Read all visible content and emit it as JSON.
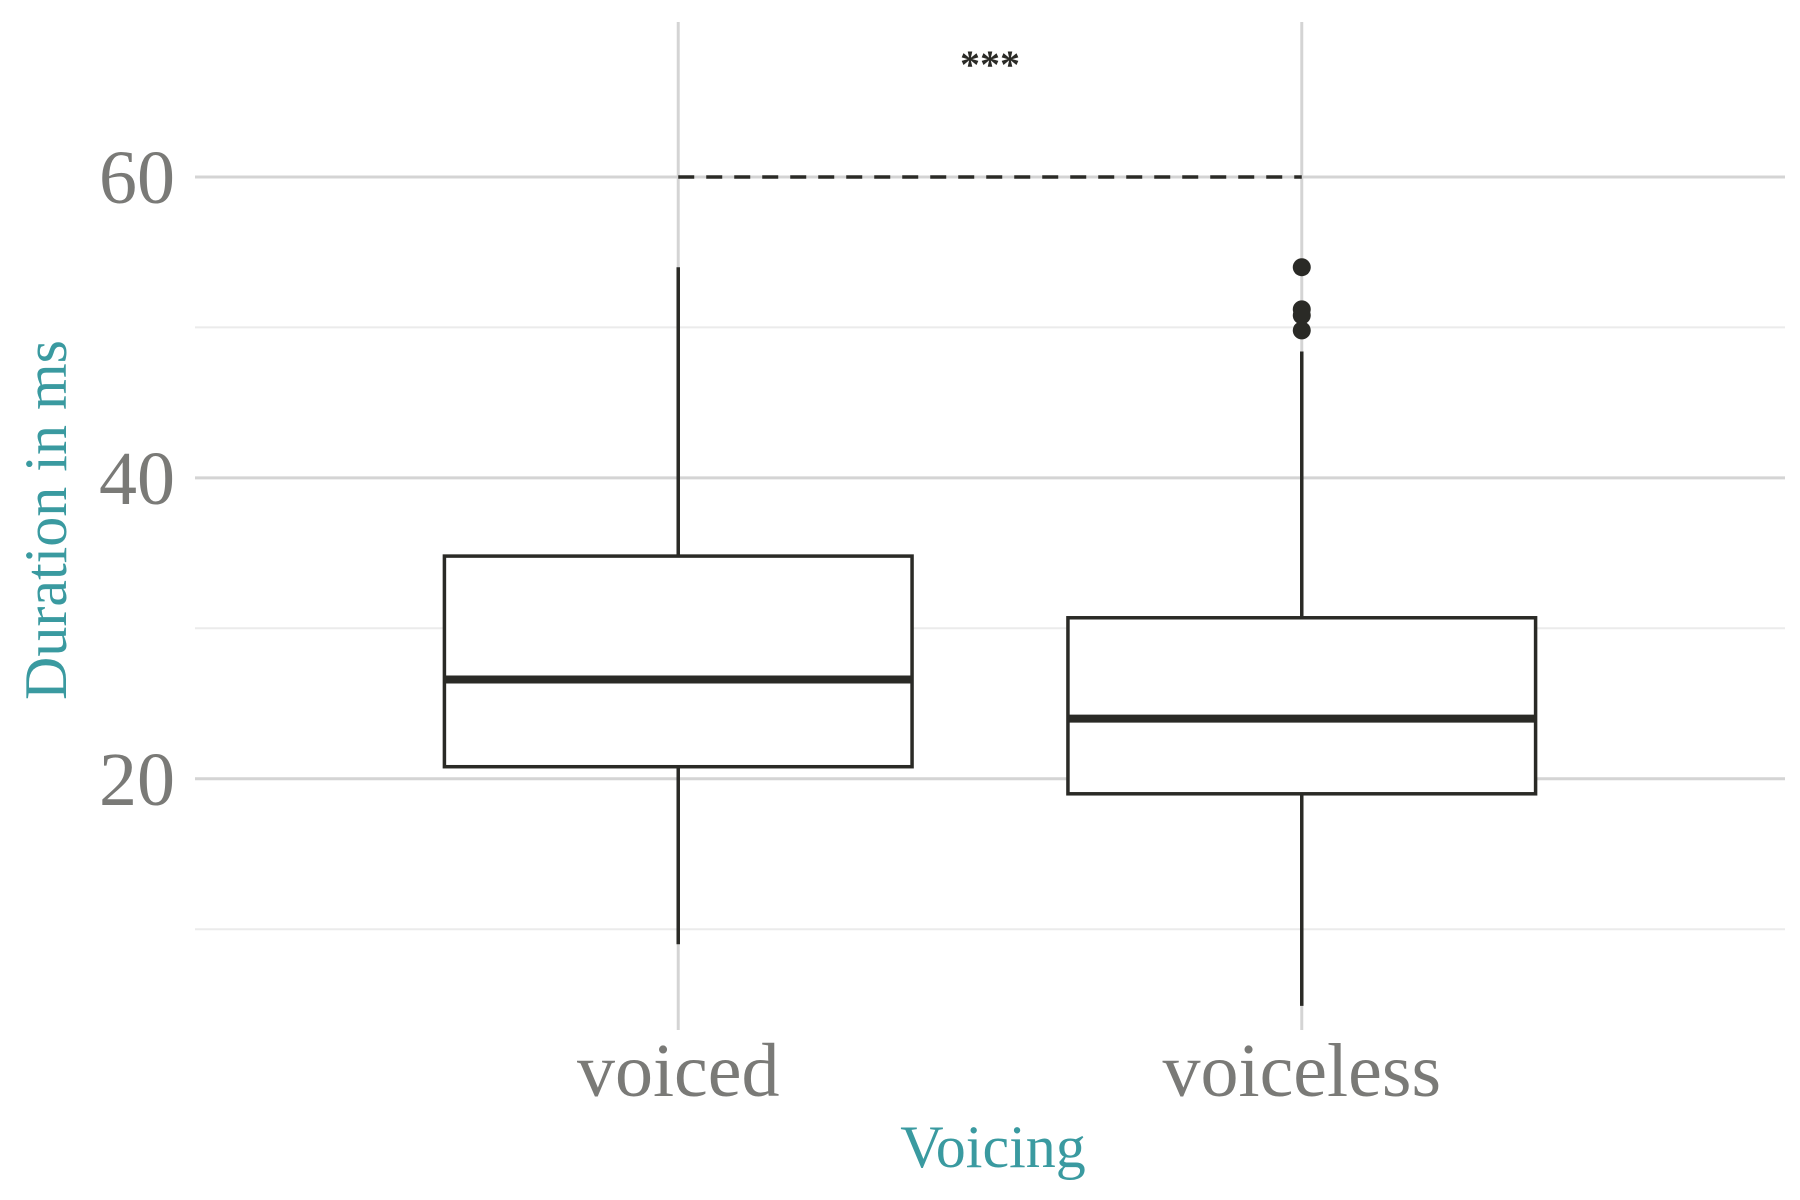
{
  "colors": {
    "axis_title": "#3a9aa0",
    "tick_label": "#7a7a77",
    "box_stroke": "#2a2a26",
    "grid_major": "#d4d4d4",
    "grid_minor": "#ebebeb",
    "background": "#ffffff"
  },
  "chart_data": {
    "type": "boxplot",
    "title": "",
    "xlabel": "Voicing",
    "ylabel": "Duration in ms",
    "ylim": [
      3.3,
      70.3
    ],
    "y_major_ticks": [
      20,
      40,
      60
    ],
    "y_minor_ticks": [
      10,
      30,
      50
    ],
    "y_tick_labels": [
      "20",
      "40",
      "60"
    ],
    "grid": true,
    "categories": [
      "voiced",
      "voiceless"
    ],
    "boxes": [
      {
        "category": "voiced",
        "whisker_low": 9.0,
        "q1": 20.8,
        "median": 26.6,
        "q3": 34.8,
        "whisker_high": 54.0,
        "outliers": []
      },
      {
        "category": "voiceless",
        "whisker_low": 4.9,
        "q1": 19.0,
        "median": 24.0,
        "q3": 30.7,
        "whisker_high": 48.4,
        "outliers": [
          49.8,
          50.8,
          51.2,
          54.0
        ]
      }
    ],
    "significance": {
      "from": "voiced",
      "to": "voiceless",
      "y": 60,
      "label": "***"
    }
  }
}
